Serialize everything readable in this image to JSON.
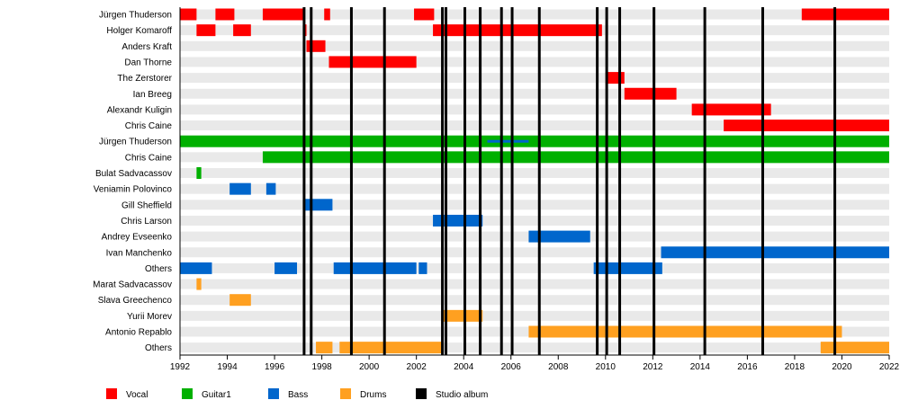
{
  "chart_data": {
    "type": "timeline",
    "xlim": [
      1992,
      2022
    ],
    "x_ticks": [
      1992,
      1994,
      1996,
      1998,
      2000,
      2002,
      2004,
      2006,
      2008,
      2010,
      2012,
      2014,
      2016,
      2018,
      2020,
      2022
    ],
    "legend_position": "bottom-left",
    "roles": [
      {
        "key": "vocal",
        "name": "Vocal",
        "color": "#ff0000"
      },
      {
        "key": "guitar",
        "name": "Guitar1",
        "color": "#00b000"
      },
      {
        "key": "bass",
        "name": "Bass",
        "color": "#0066cc"
      },
      {
        "key": "drums",
        "name": "Drums",
        "color": "#ffa020"
      },
      {
        "key": "album",
        "name": "Studio album",
        "color": "#000000"
      }
    ],
    "members": [
      {
        "name": "Jürgen Thuderson",
        "periods": [
          {
            "role": "vocal",
            "from": 1992.0,
            "to": 1992.7
          },
          {
            "role": "vocal",
            "from": 1993.5,
            "to": 1994.3
          },
          {
            "role": "vocal",
            "from": 1995.5,
            "to": 1997.25
          },
          {
            "role": "vocal",
            "from": 1998.1,
            "to": 1998.35
          },
          {
            "role": "vocal",
            "from": 2001.9,
            "to": 2002.75
          },
          {
            "role": "vocal",
            "from": 2018.3,
            "to": 2022
          }
        ]
      },
      {
        "name": "Holger Komaroff",
        "periods": [
          {
            "role": "vocal",
            "from": 1992.7,
            "to": 1993.5
          },
          {
            "role": "vocal",
            "from": 1994.25,
            "to": 1995.0
          },
          {
            "role": "vocal",
            "from": 1997.25,
            "to": 1997.35
          },
          {
            "role": "vocal",
            "from": 2002.7,
            "to": 2009.85
          }
        ]
      },
      {
        "name": "Anders Kraft",
        "periods": [
          {
            "role": "vocal",
            "from": 1997.35,
            "to": 1998.15
          }
        ]
      },
      {
        "name": "Dan Thorne",
        "periods": [
          {
            "role": "vocal",
            "from": 1998.3,
            "to": 2002.0
          }
        ]
      },
      {
        "name": "The Zerstorer",
        "periods": [
          {
            "role": "vocal",
            "from": 2010.0,
            "to": 2010.8
          }
        ]
      },
      {
        "name": "Ian Breeg",
        "periods": [
          {
            "role": "vocal",
            "from": 2010.8,
            "to": 2013.0
          }
        ]
      },
      {
        "name": "Alexandr Kuligin",
        "periods": [
          {
            "role": "vocal",
            "from": 2013.65,
            "to": 2017.0
          }
        ]
      },
      {
        "name": "Chris Caine",
        "periods": [
          {
            "role": "vocal",
            "from": 2015.0,
            "to": 2022
          }
        ]
      },
      {
        "name": "Jürgen Thuderson",
        "periods": [
          {
            "role": "guitar",
            "from": 1992.0,
            "to": 2022
          },
          {
            "role": "bass",
            "from": 2005.0,
            "to": 2006.75,
            "thin": true
          }
        ]
      },
      {
        "name": "Chris Caine",
        "periods": [
          {
            "role": "guitar",
            "from": 1995.5,
            "to": 2022
          }
        ]
      },
      {
        "name": "Bulat Sadvacassov",
        "periods": [
          {
            "role": "guitar",
            "from": 1992.7,
            "to": 1992.9
          }
        ]
      },
      {
        "name": "Veniamin Polovinco",
        "periods": [
          {
            "role": "bass",
            "from": 1994.1,
            "to": 1995.0
          },
          {
            "role": "bass",
            "from": 1995.65,
            "to": 1996.05
          }
        ]
      },
      {
        "name": "Gill Sheffield",
        "periods": [
          {
            "role": "bass",
            "from": 1997.25,
            "to": 1998.45
          }
        ]
      },
      {
        "name": "Chris Larson",
        "periods": [
          {
            "role": "bass",
            "from": 2002.7,
            "to": 2004.8
          }
        ]
      },
      {
        "name": "Andrey Evseenko",
        "periods": [
          {
            "role": "bass",
            "from": 2006.75,
            "to": 2009.35
          }
        ]
      },
      {
        "name": "Ivan Manchenko",
        "periods": [
          {
            "role": "bass",
            "from": 2012.35,
            "to": 2022
          }
        ]
      },
      {
        "name": "Others",
        "periods": [
          {
            "role": "bass",
            "from": 1992.0,
            "to": 1993.35
          },
          {
            "role": "bass",
            "from": 1996.0,
            "to": 1996.95
          },
          {
            "role": "bass",
            "from": 1998.5,
            "to": 2002.0
          },
          {
            "role": "bass",
            "from": 2002.1,
            "to": 2002.45
          },
          {
            "role": "bass",
            "from": 2009.5,
            "to": 2012.4
          }
        ]
      },
      {
        "name": "Marat Sadvacassov",
        "periods": [
          {
            "role": "drums",
            "from": 1992.7,
            "to": 1992.9
          }
        ]
      },
      {
        "name": "Slava Greechenco",
        "periods": [
          {
            "role": "drums",
            "from": 1994.1,
            "to": 1995.0
          }
        ]
      },
      {
        "name": "Yurii Morev",
        "periods": [
          {
            "role": "drums",
            "from": 2003.15,
            "to": 2004.8
          }
        ]
      },
      {
        "name": "Antonio Repablo",
        "periods": [
          {
            "role": "drums",
            "from": 2006.75,
            "to": 2020.0
          }
        ]
      },
      {
        "name": "Others",
        "periods": [
          {
            "role": "drums",
            "from": 1997.75,
            "to": 1998.45
          },
          {
            "role": "drums",
            "from": 1998.75,
            "to": 2003.15
          },
          {
            "role": "drums",
            "from": 2019.1,
            "to": 2022
          }
        ]
      }
    ],
    "studio_albums": [
      1997.25,
      1997.55,
      1999.25,
      2000.65,
      2003.1,
      2003.25,
      2004.05,
      2004.7,
      2005.6,
      2006.05,
      2007.2,
      2009.65,
      2010.05,
      2010.6,
      2012.05,
      2014.2,
      2016.65,
      2019.7
    ]
  }
}
